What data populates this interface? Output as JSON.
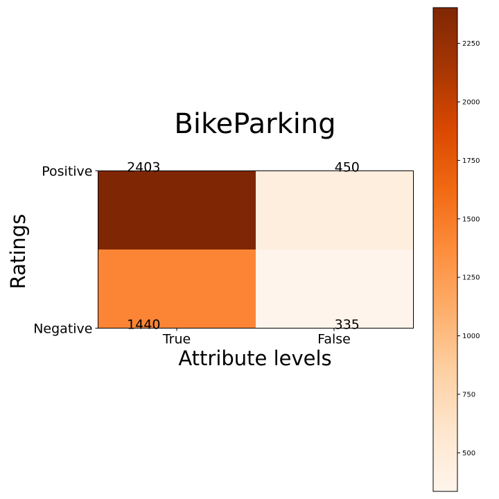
{
  "chart_data": {
    "type": "heatmap",
    "title": "BikeParking",
    "xlabel": "Attribute levels",
    "ylabel": "Ratings",
    "x_categories": [
      "True",
      "False"
    ],
    "y_categories": [
      "Positive",
      "Negative"
    ],
    "values": [
      [
        2403,
        450
      ],
      [
        1440,
        335
      ]
    ],
    "colormap": "Oranges",
    "colors": {
      "cell_pos_true": "#7f2704",
      "cell_pos_false": "#fdeedd",
      "cell_neg_true": "#fb8535",
      "cell_neg_false": "#fff4eb"
    },
    "colorbar": {
      "range": [
        335,
        2403
      ],
      "ticks": [
        500,
        750,
        1000,
        1250,
        1500,
        1750,
        2000,
        2250
      ],
      "tick_labels": [
        "500",
        "750",
        "1000",
        "1250",
        "1500",
        "1750",
        "2000",
        "2250"
      ]
    }
  }
}
